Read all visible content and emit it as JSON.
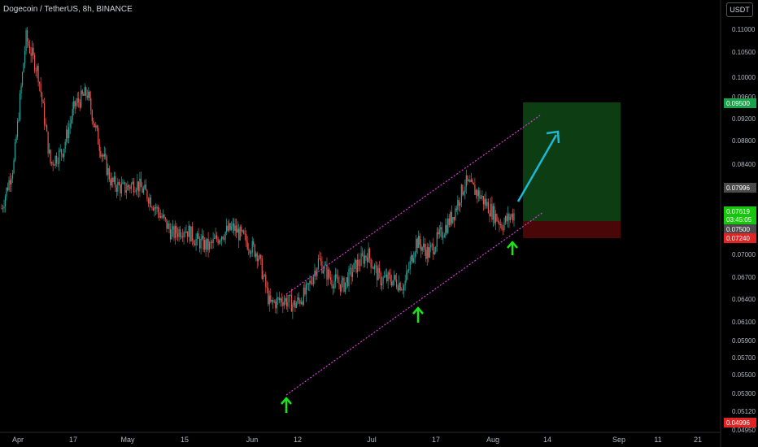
{
  "header": {
    "title": "Dogecoin / TetherUS, 8h, BINANCE",
    "currency_button": "USDT"
  },
  "colors": {
    "background": "#000000",
    "up": "#26a69a",
    "down": "#ef5350",
    "up_bright": "#16c60c",
    "channel": "#d63fd6",
    "arrow": "#1fb7d6",
    "target_zone": "#0d3d13",
    "stop_zone": "#4a0707",
    "signal_arrow": "#19e619"
  },
  "chart_data": {
    "type": "candlestick",
    "symbol": "DOGEUSDT",
    "timeframe": "8h",
    "exchange": "BINANCE",
    "x_tick_labels": [
      "Apr",
      "17",
      "May",
      "15",
      "Jun",
      "12",
      "Jul",
      "17",
      "Aug",
      "14",
      "Sep",
      "11",
      "21"
    ],
    "y_tick_labels": [
      "0.11000",
      "0.10500",
      "0.10000",
      "0.09600",
      "0.09200",
      "0.08800",
      "0.08400",
      "0.07000",
      "0.06700",
      "0.06400",
      "0.06100",
      "0.05900",
      "0.05700",
      "0.05500",
      "0.05300",
      "0.05120",
      "0.04950"
    ],
    "price_labels": [
      {
        "text": "0.09500",
        "color": "#16a34a"
      },
      {
        "text": "0.07996",
        "color": "#4a4a4a"
      },
      {
        "text": "0.07619",
        "color": "#16c60c"
      },
      {
        "text": "03:45:05",
        "color": "#16c60c"
      },
      {
        "text": "0.07500",
        "color": "#4a4a4a"
      },
      {
        "text": "0.07240",
        "color": "#e02424"
      },
      {
        "text": "0.04996",
        "color": "#e02424"
      }
    ],
    "price_path": [
      {
        "label": "Apr",
        "close": 0.077
      },
      {
        "label": "",
        "close": 0.084
      },
      {
        "label": "",
        "close": 0.1035
      },
      {
        "label": "",
        "close": 0.098
      },
      {
        "label": "",
        "close": 0.084
      },
      {
        "label": "17",
        "close": 0.086
      },
      {
        "label": "",
        "close": 0.093
      },
      {
        "label": "",
        "close": 0.095
      },
      {
        "label": "",
        "close": 0.087
      },
      {
        "label": "",
        "close": 0.081
      },
      {
        "label": "",
        "close": 0.08
      },
      {
        "label": "May",
        "close": 0.081
      },
      {
        "label": "",
        "close": 0.079
      },
      {
        "label": "",
        "close": 0.076
      },
      {
        "label": "",
        "close": 0.073
      },
      {
        "label": "15",
        "close": 0.074
      },
      {
        "label": "",
        "close": 0.072
      },
      {
        "label": "",
        "close": 0.071
      },
      {
        "label": "",
        "close": 0.073
      },
      {
        "label": "",
        "close": 0.074
      },
      {
        "label": "Jun",
        "close": 0.072
      },
      {
        "label": "",
        "close": 0.07
      },
      {
        "label": "",
        "close": 0.062
      },
      {
        "label": "12",
        "close": 0.063
      },
      {
        "label": "",
        "close": 0.062
      },
      {
        "label": "",
        "close": 0.064
      },
      {
        "label": "",
        "close": 0.069
      },
      {
        "label": "",
        "close": 0.066
      },
      {
        "label": "",
        "close": 0.065
      },
      {
        "label": "Jul",
        "close": 0.068
      },
      {
        "label": "",
        "close": 0.07
      },
      {
        "label": "",
        "close": 0.066
      },
      {
        "label": "",
        "close": 0.066
      },
      {
        "label": "",
        "close": 0.065
      },
      {
        "label": "17",
        "close": 0.072
      },
      {
        "label": "",
        "close": 0.07
      },
      {
        "label": "",
        "close": 0.073
      },
      {
        "label": "",
        "close": 0.076
      },
      {
        "label": "",
        "close": 0.081
      },
      {
        "label": "",
        "close": 0.0795
      },
      {
        "label": "",
        "close": 0.077
      },
      {
        "label": "Aug",
        "close": 0.0745
      },
      {
        "label": "",
        "close": 0.0762
      }
    ],
    "channel": {
      "upper": [
        {
          "x": "Jun 10",
          "y": 0.065
        },
        {
          "x": "Aug 11",
          "y": 0.093
        }
      ],
      "lower": [
        {
          "x": "Jun 10",
          "y": 0.0535
        },
        {
          "x": "Aug 11",
          "y": 0.0778
        }
      ]
    },
    "position": {
      "target": 0.095,
      "entry": 0.0762,
      "stop": 0.0724
    }
  }
}
